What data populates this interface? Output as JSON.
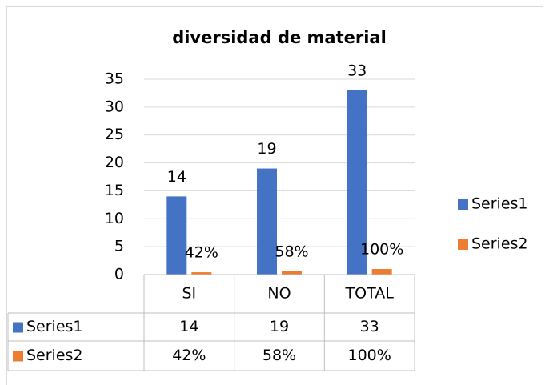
{
  "chart_data": {
    "type": "bar",
    "title": "diversidad de material",
    "categories": [
      "SI",
      "NO",
      "TOTAL"
    ],
    "series": [
      {
        "name": "Series1",
        "color": "#4472c4",
        "values": [
          14,
          19,
          33
        ]
      },
      {
        "name": "Series2",
        "color": "#ed7d31",
        "values": [
          0.42,
          0.58,
          1
        ],
        "value_labels": [
          "42%",
          "58%",
          "100%"
        ]
      }
    ],
    "ylim": [
      0,
      35
    ],
    "yticks": [
      0,
      5,
      10,
      15,
      20,
      25,
      30,
      35
    ],
    "grid": true,
    "legend": "right",
    "data_table": true
  }
}
